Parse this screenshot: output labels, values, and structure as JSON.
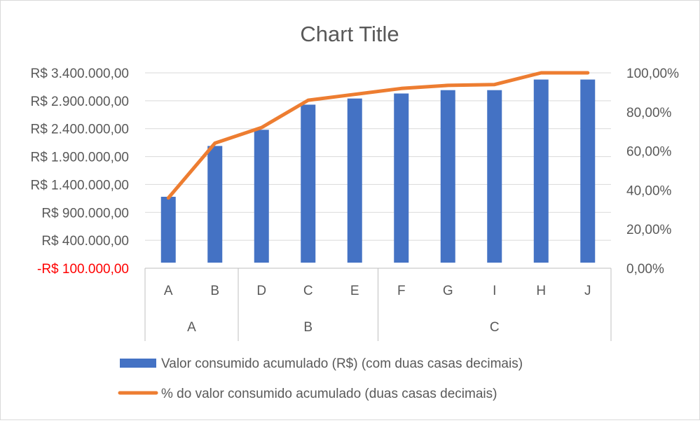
{
  "chart_data": {
    "type": "bar+line",
    "title": "Chart Title",
    "categories": [
      "A",
      "B",
      "D",
      "C",
      "E",
      "F",
      "G",
      "I",
      "H",
      "J"
    ],
    "groups": [
      {
        "label": "A",
        "members": [
          "A",
          "B"
        ]
      },
      {
        "label": "B",
        "members": [
          "D",
          "C",
          "E"
        ]
      },
      {
        "label": "C",
        "members": [
          "F",
          "G",
          "I",
          "H",
          "J"
        ]
      }
    ],
    "series": [
      {
        "name": "Valor consumido acumulado (R$) (com duas casas decimais)",
        "type": "bar",
        "axis": "left",
        "color": "#4472C4",
        "values": [
          1180000,
          2090000,
          2380000,
          2830000,
          2940000,
          3030000,
          3090000,
          3090000,
          3280000,
          3280000
        ]
      },
      {
        "name": "% do valor consumido acumulado (duas casas decimais)",
        "type": "line",
        "axis": "right",
        "color": "#ED7D31",
        "values": [
          36,
          64,
          72,
          86,
          89,
          92,
          93.6,
          94,
          100,
          100
        ]
      }
    ],
    "y_left": {
      "min": -100000,
      "max": 3400000,
      "ticks": [
        -100000,
        400000,
        900000,
        1400000,
        1900000,
        2400000,
        2900000,
        3400000
      ],
      "tick_labels": [
        "-R$ 100.000,00",
        "R$ 400.000,00",
        "R$ 900.000,00",
        "R$ 1.400.000,00",
        "R$ 1.900.000,00",
        "R$ 2.400.000,00",
        "R$ 2.900.000,00",
        "R$ 3.400.000,00"
      ],
      "negative_color": "#FF0000"
    },
    "y_right": {
      "min": 0,
      "max": 100,
      "ticks": [
        0,
        20,
        40,
        60,
        80,
        100
      ],
      "tick_labels": [
        "0,00%",
        "20,00%",
        "40,00%",
        "60,00%",
        "80,00%",
        "100,00%"
      ]
    },
    "grid": true,
    "legend_position": "bottom"
  }
}
